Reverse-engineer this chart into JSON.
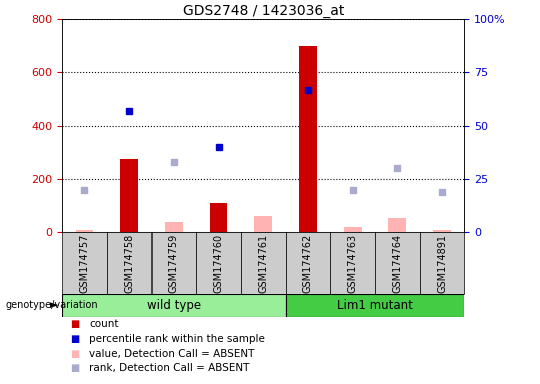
{
  "title": "GDS2748 / 1423036_at",
  "samples": [
    "GSM174757",
    "GSM174758",
    "GSM174759",
    "GSM174760",
    "GSM174761",
    "GSM174762",
    "GSM174763",
    "GSM174764",
    "GSM174891"
  ],
  "count_present": [
    null,
    275,
    null,
    110,
    null,
    700,
    null,
    null,
    null
  ],
  "count_absent": [
    10,
    null,
    40,
    null,
    60,
    null,
    20,
    55,
    10
  ],
  "percentile_present": [
    null,
    57,
    null,
    40,
    null,
    67,
    null,
    null,
    null
  ],
  "percentile_absent": [
    20,
    null,
    33,
    null,
    null,
    null,
    20,
    30,
    19
  ],
  "wild_type_indices": [
    0,
    1,
    2,
    3,
    4
  ],
  "lim1_mutant_indices": [
    5,
    6,
    7,
    8
  ],
  "ylim_left": [
    0,
    800
  ],
  "ylim_right": [
    0,
    100
  ],
  "yticks_left": [
    0,
    200,
    400,
    600,
    800
  ],
  "yticks_right": [
    0,
    25,
    50,
    75,
    100
  ],
  "ytick_labels_right": [
    "0",
    "25",
    "50",
    "75",
    "100%"
  ],
  "color_count_present": "#cc0000",
  "color_count_absent": "#ffb3b3",
  "color_percentile_present": "#0000cc",
  "color_percentile_absent": "#aaaacc",
  "color_wildtype_bg": "#99ee99",
  "color_mutant_bg": "#44cc44",
  "color_sample_bg": "#cccccc",
  "bar_width": 0.4,
  "legend_items": [
    {
      "label": "count",
      "color": "#cc0000"
    },
    {
      "label": "percentile rank within the sample",
      "color": "#0000cc"
    },
    {
      "label": "value, Detection Call = ABSENT",
      "color": "#ffb3b3"
    },
    {
      "label": "rank, Detection Call = ABSENT",
      "color": "#aaaacc"
    }
  ]
}
